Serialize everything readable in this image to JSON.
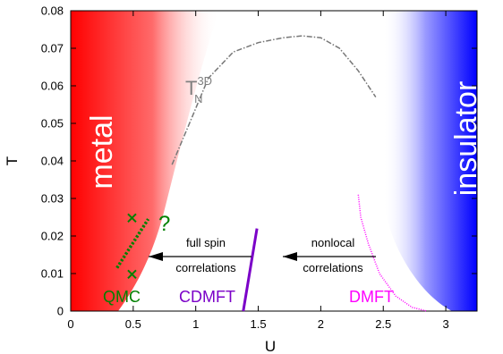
{
  "chart_data": {
    "type": "line",
    "xlabel": "U",
    "ylabel": "T",
    "xlim": [
      0,
      3.25
    ],
    "ylim": [
      0,
      0.08
    ],
    "x_ticks": [
      "0",
      "0.5",
      "1",
      "1.5",
      "2",
      "2.5",
      "3"
    ],
    "y_ticks": [
      "0",
      "0.01",
      "0.02",
      "0.03",
      "0.04",
      "0.05",
      "0.06",
      "0.07",
      "0.08"
    ],
    "regions": {
      "metal": {
        "label": "metal",
        "color": "#ff0000"
      },
      "insulator": {
        "label": "insulator",
        "color": "#0000ff"
      }
    },
    "series": [
      {
        "label_main": "T",
        "label_sup": "3D",
        "label_sub": "N",
        "color": "#808080",
        "style": "dash-dot",
        "points": [
          [
            0.81,
            0.039
          ],
          [
            0.95,
            0.05
          ],
          [
            1.1,
            0.062
          ],
          [
            1.3,
            0.069
          ],
          [
            1.5,
            0.0715
          ],
          [
            1.7,
            0.0728
          ],
          [
            1.85,
            0.0733
          ],
          [
            2.0,
            0.0728
          ],
          [
            2.15,
            0.07
          ],
          [
            2.3,
            0.064
          ],
          [
            2.44,
            0.057
          ]
        ]
      },
      {
        "label": "QMC",
        "color": "#008000",
        "style": "dotted",
        "points": [
          [
            0.37,
            0.0115
          ],
          [
            0.62,
            0.0245
          ]
        ]
      },
      {
        "label": "CDMFT",
        "color": "#7b00c8",
        "style": "solid",
        "points": [
          [
            1.38,
            0.0
          ],
          [
            1.49,
            0.022
          ]
        ]
      },
      {
        "label": "DMFT",
        "color": "#ff00ff",
        "style": "dotted",
        "points": [
          [
            2.3,
            0.031
          ],
          [
            2.32,
            0.025
          ],
          [
            2.38,
            0.018
          ],
          [
            2.47,
            0.01
          ],
          [
            2.6,
            0.004
          ],
          [
            2.73,
            0.001
          ],
          [
            2.85,
            0.0
          ]
        ]
      }
    ],
    "qmc_markers": [
      [
        0.49,
        0.0248
      ],
      [
        0.49,
        0.0098
      ]
    ],
    "question_mark": "?",
    "annotations": [
      {
        "line1": "full spin",
        "line2": "correlations"
      },
      {
        "line1": "nonlocal",
        "line2": "correlations"
      }
    ]
  }
}
